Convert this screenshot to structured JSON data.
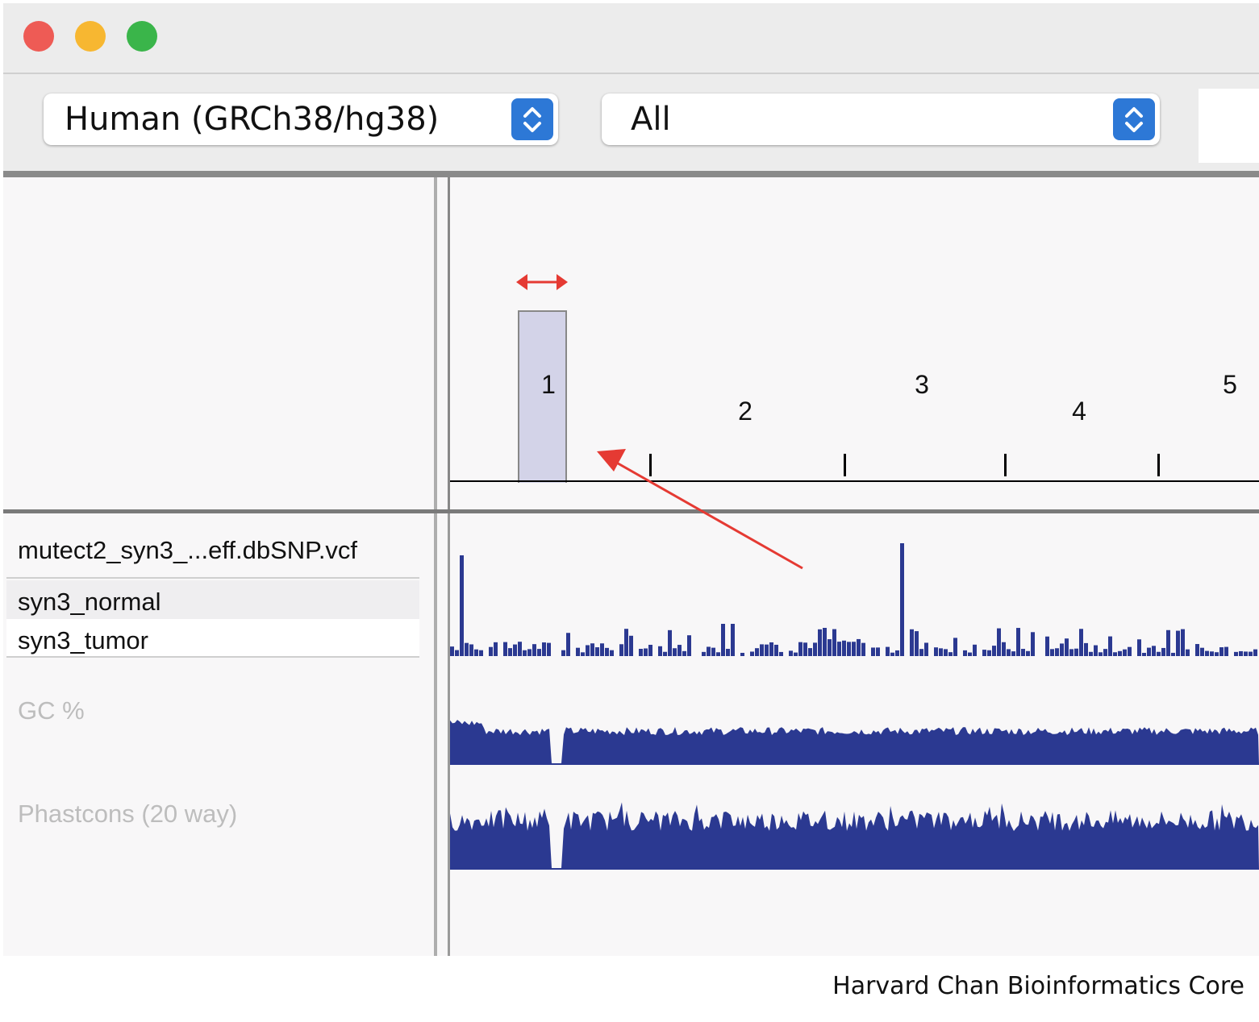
{
  "window": {
    "controls": [
      "close",
      "minimize",
      "zoom"
    ]
  },
  "toolbar": {
    "genome_select": {
      "value": "Human (GRCh38/hg38)",
      "icon": "chevron-updown-icon"
    },
    "chromosome_select": {
      "value": "All",
      "icon": "chevron-updown-icon"
    }
  },
  "ideogram": {
    "chromosomes": [
      {
        "label": "1",
        "highlighted": true
      },
      {
        "label": "2"
      },
      {
        "label": "3"
      },
      {
        "label": "4"
      },
      {
        "label": "5"
      }
    ],
    "highlight_color": "#d3d3e8",
    "annotation_color": "#e53a33"
  },
  "tracks": {
    "vcf": {
      "name": "mutect2_syn3_...eff.dbSNP.vcf",
      "samples": [
        "syn3_normal",
        "syn3_tumor"
      ]
    },
    "gc": {
      "name": "GC %"
    },
    "phastcons": {
      "name": "Phastcons (20 way)"
    },
    "bar_color": "#2b3991"
  },
  "footer": {
    "credit": "Harvard Chan Bioinformatics Core"
  }
}
